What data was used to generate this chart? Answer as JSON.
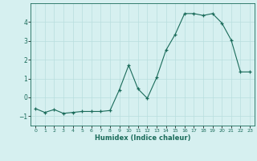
{
  "x": [
    0,
    1,
    2,
    3,
    4,
    5,
    6,
    7,
    8,
    9,
    10,
    11,
    12,
    13,
    14,
    15,
    16,
    17,
    18,
    19,
    20,
    21,
    22,
    23
  ],
  "y": [
    -0.6,
    -0.8,
    -0.65,
    -0.85,
    -0.8,
    -0.75,
    -0.75,
    -0.75,
    -0.7,
    0.4,
    1.7,
    0.45,
    -0.05,
    1.05,
    2.5,
    3.35,
    4.45,
    4.45,
    4.35,
    4.45,
    3.95,
    3.05,
    1.35,
    1.35
  ],
  "xlabel": "Humidex (Indice chaleur)",
  "ylim": [
    -1.5,
    5.0
  ],
  "xlim": [
    -0.5,
    23.5
  ],
  "yticks": [
    -1,
    0,
    1,
    2,
    3,
    4
  ],
  "xticks": [
    0,
    1,
    2,
    3,
    4,
    5,
    6,
    7,
    8,
    9,
    10,
    11,
    12,
    13,
    14,
    15,
    16,
    17,
    18,
    19,
    20,
    21,
    22,
    23
  ],
  "line_color": "#1a6b5a",
  "marker": "+",
  "bg_color": "#d6f0f0",
  "grid_color": "#b8dede"
}
